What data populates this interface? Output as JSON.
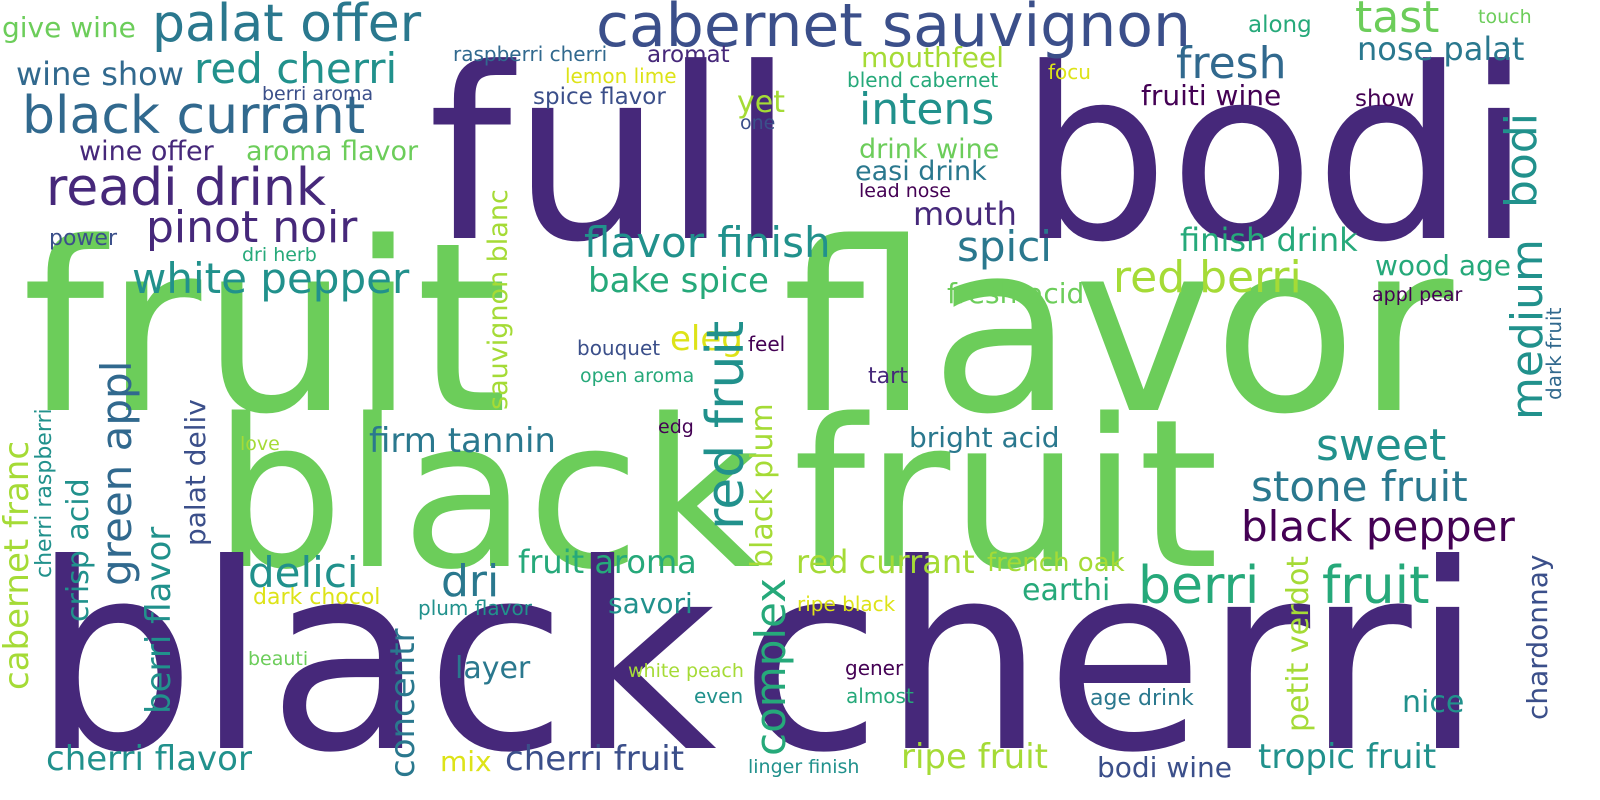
{
  "colors": {
    "background": "#ffffff",
    "deep_purple": "#46287a",
    "indigo": "#3b4f8a",
    "slate_blue": "#31698e",
    "teal_blue": "#2a788e",
    "teal": "#21918c",
    "sea_green": "#26a97a",
    "green": "#2bb07f",
    "light_green": "#6ccd5a",
    "lime": "#a5db36",
    "yellow": "#dde318",
    "dark_purple": "#440154"
  },
  "words": [
    "full",
    "bodi",
    "fruit",
    "flavor",
    "black",
    "fruit",
    "black",
    "cherri",
    "cabernet sauvignon",
    "palat offer",
    "tast",
    "touch",
    "give wine",
    "along",
    "red cherri",
    "wine show",
    "raspberri cherri",
    "aromat",
    "blend cabernet",
    "fresh",
    "nose palat",
    "lemon lime",
    "focu",
    "black currant",
    "berri aroma",
    "spice flavor",
    "yet",
    "fruiti wine",
    "show",
    "one",
    "intens",
    "bodi",
    "wine offer",
    "aroma flavor",
    "drink wine",
    "readi drink",
    "easi drink",
    "lead nose",
    "mouth",
    "pinot noir",
    "sauvignon blanc",
    "power",
    "flavor finish",
    "spici",
    "finish drink",
    "medium",
    "dri herb",
    "white pepper",
    "bake spice",
    "red berri",
    "wood age",
    "fresh acid",
    "appl pear",
    "dark fruit",
    "eleg",
    "feel",
    "bouquet",
    "cabernet franc",
    "cherri raspberri",
    "green appl",
    "palat deliv",
    "open aroma",
    "red fruit",
    "tart",
    "crisp acid",
    "firm tannin",
    "bright acid",
    "edg",
    "love",
    "sweet",
    "berri flavor",
    "black plum",
    "stone fruit",
    "black pepper",
    "delici",
    "dri",
    "fruit aroma",
    "complex",
    "berri",
    "fruit",
    "red currant",
    "french oak",
    "earthi",
    "dark chocol",
    "plum flavor",
    "savori",
    "ripe black",
    "petit verdot",
    "chardonnay",
    "concentr",
    "beauti",
    "layer",
    "white peach",
    "gener",
    "even",
    "almost",
    "age drink",
    "nice",
    "cherri flavor",
    "mix",
    "cherri fruit",
    "ripe fruit",
    "linger finish",
    "bodi wine",
    "tropic fruit",
    "mouthfeel"
  ]
}
